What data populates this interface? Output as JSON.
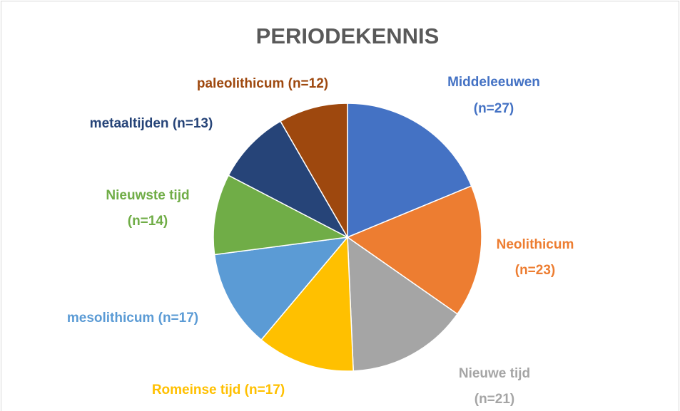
{
  "chart_data": {
    "type": "pie",
    "title": "PERIODEKENNIS",
    "categories": [
      "Middeleeuwen",
      "Neolithicum",
      "Nieuwe tijd",
      "Romeinse tijd",
      "mesolithicum",
      "Nieuwste tijd",
      "metaaltijden",
      "paleolithicum"
    ],
    "values": [
      27,
      23,
      21,
      17,
      17,
      14,
      13,
      12
    ],
    "value_labels": [
      "(n=27)",
      "(n=23)",
      "(n=21)",
      "(n=17)",
      "(n=17)",
      "(n=14)",
      "(n=13)",
      "(n=12)"
    ],
    "colors": [
      "#4472c4",
      "#ed7d31",
      "#a5a5a5",
      "#ffc000",
      "#5b9bd5",
      "#70ad47",
      "#264478",
      "#9e480e"
    ]
  }
}
